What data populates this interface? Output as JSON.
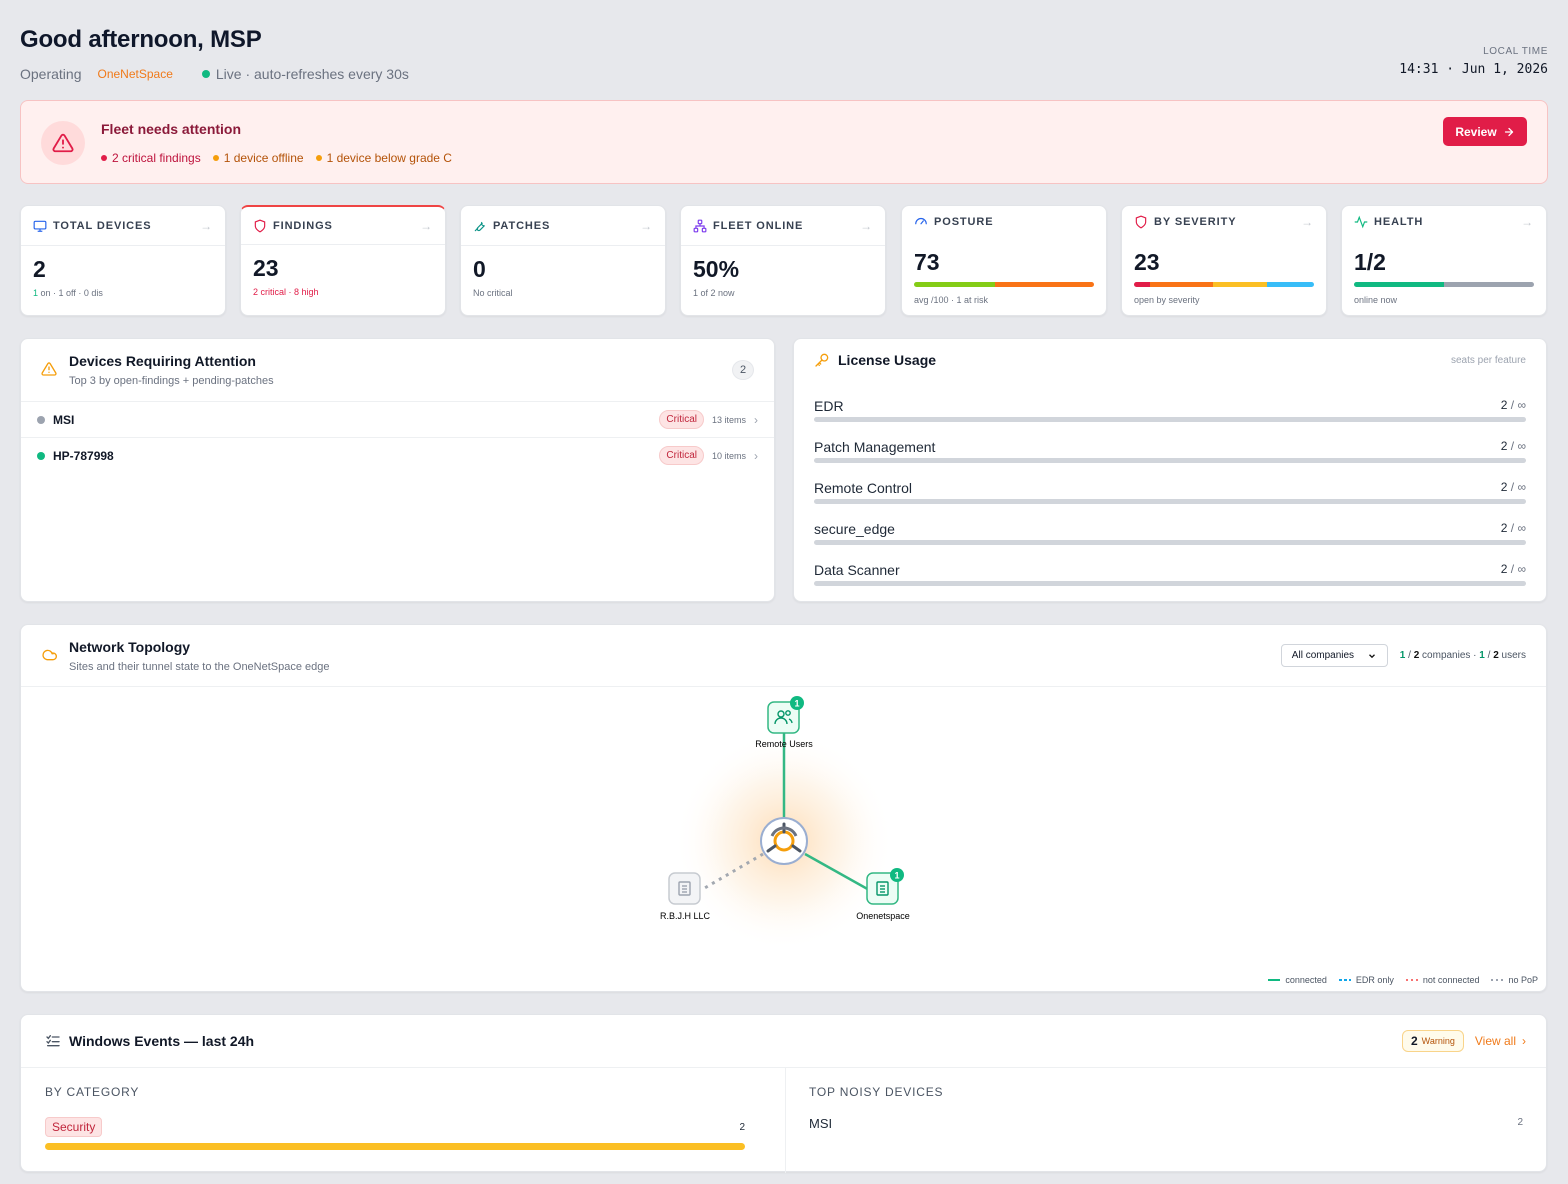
{
  "header": {
    "greeting": "Good afternoon, MSP",
    "operating_label": "Operating",
    "org_name": "OneNetSpace",
    "live_text": "Live · auto-refreshes every 30s",
    "local_time_label": "LOCAL TIME",
    "local_time_value": "14:31 · Jun 1, 2026"
  },
  "alert": {
    "title": "Fleet needs attention",
    "items": [
      {
        "text": "2 critical findings",
        "color": "#e11d48"
      },
      {
        "text": "1 device offline",
        "color": "#f59e0b"
      },
      {
        "text": "1 device below grade C",
        "color": "#f59e0b"
      }
    ],
    "button_label": "Review"
  },
  "kpis": {
    "total_devices": {
      "label": "TOTAL DEVICES",
      "value": "2",
      "sub_on": "1",
      "sub_rest": " on · 1 off · 0 dis"
    },
    "findings": {
      "label": "FINDINGS",
      "value": "23",
      "sub": "2 critical · 8 high"
    },
    "patches": {
      "label": "PATCHES",
      "value": "0",
      "sub": "No critical"
    },
    "fleet_online": {
      "label": "FLEET ONLINE",
      "value": "50%",
      "sub": "1 of 2 now"
    },
    "posture": {
      "label": "POSTURE",
      "value": "73",
      "sub": "avg /100 · 1 at risk"
    },
    "by_severity": {
      "label": "BY SEVERITY",
      "value": "23",
      "sub": "open by severity"
    },
    "health": {
      "label": "HEALTH",
      "value": "1/2",
      "sub": "online now"
    }
  },
  "devices_attention": {
    "title": "Devices Requiring Attention",
    "subtitle": "Top 3 by open-findings + pending-patches",
    "count": "2",
    "rows": [
      {
        "name": "MSI",
        "status_color": "#9ca3af",
        "badge": "Critical",
        "items": "13 items"
      },
      {
        "name": "HP-787998",
        "status_color": "#10b981",
        "badge": "Critical",
        "items": "10 items"
      }
    ]
  },
  "license": {
    "title": "License Usage",
    "hint": "seats per feature",
    "rows": [
      {
        "name": "EDR",
        "used": "2",
        "total": "∞"
      },
      {
        "name": "Patch Management",
        "used": "2",
        "total": "∞"
      },
      {
        "name": "Remote Control",
        "used": "2",
        "total": "∞"
      },
      {
        "name": "secure_edge",
        "used": "2",
        "total": "∞"
      },
      {
        "name": "Data Scanner",
        "used": "2",
        "total": "∞"
      }
    ]
  },
  "topology": {
    "title": "Network Topology",
    "subtitle": "Sites and their tunnel state to the OneNetSpace edge",
    "filter_value": "All companies",
    "companies_connected": "1",
    "companies_total": "2",
    "companies_label": "companies",
    "users_connected": "1",
    "users_total": "2",
    "users_label": "users",
    "nodes": {
      "remote_users": {
        "label": "Remote Users",
        "badge": "1"
      },
      "rbjh": {
        "label": "R.B.J.H LLC"
      },
      "onenetspace": {
        "label": "Onenetspace",
        "badge": "1"
      }
    },
    "legend": [
      "connected",
      "EDR only",
      "not connected",
      "no PoP"
    ]
  },
  "events": {
    "title": "Windows Events — last 24h",
    "warning_count": "2",
    "warning_label": "Warning",
    "view_all": "View all",
    "by_category_label": "BY CATEGORY",
    "categories": [
      {
        "name": "Security",
        "count": "2"
      }
    ],
    "noisy_label": "TOP NOISY DEVICES",
    "noisy": [
      {
        "name": "MSI",
        "count": "2"
      }
    ]
  }
}
